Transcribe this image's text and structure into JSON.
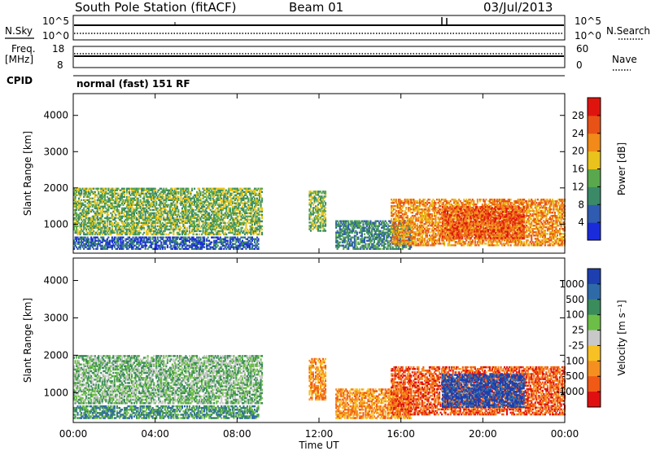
{
  "header": {
    "station": "South Pole Station (fitACF)",
    "beam": "Beam 01",
    "date": "03/Jul/2013"
  },
  "top_panels": {
    "nsky_label": "N.Sky",
    "nsearch_label": "N.Search",
    "noise_ticks": [
      "10^5",
      "10^0"
    ],
    "freq_label": "Freq.",
    "freq_unit": "[MHz]",
    "freq_ticks": [
      "18",
      "8"
    ],
    "nave_label": "Nave",
    "nave_ticks": [
      "60",
      "0"
    ],
    "cpid_label": "CPID",
    "cpid_value": "normal (fast) 151 RF"
  },
  "chart_data": [
    {
      "type": "heatmap",
      "xlabel": "Time UT",
      "ylabel": "Slant Range [km]",
      "x_ticks": [
        "00:00",
        "04:00",
        "08:00",
        "12:00",
        "16:00",
        "20:00",
        "00:00"
      ],
      "y_ticks": [
        1000,
        2000,
        3000,
        4000
      ],
      "ylim": [
        200,
        4600
      ],
      "xlim_hours": [
        0,
        24
      ],
      "colorbar": {
        "label": "Power [dB]",
        "ticks": [
          "4",
          "8",
          "12",
          "16",
          "20",
          "24",
          "28"
        ],
        "colors": [
          "#1a2bdc",
          "#2f5bb0",
          "#3a8a68",
          "#5aa84e",
          "#e9c31c",
          "#f18a18",
          "#e85216",
          "#e0140e"
        ]
      },
      "regions": [
        {
          "t0": 0.0,
          "t1": 9.2,
          "r0": 700,
          "r1": 2000,
          "level": 3
        },
        {
          "t0": 0.0,
          "t1": 9.0,
          "r0": 300,
          "r1": 650,
          "level": 1
        },
        {
          "t0": 11.5,
          "t1": 12.3,
          "r0": 800,
          "r1": 1900,
          "level": 3
        },
        {
          "t0": 12.8,
          "t1": 16.5,
          "r0": 300,
          "r1": 1100,
          "level": 2
        },
        {
          "t0": 15.5,
          "t1": 24.0,
          "r0": 400,
          "r1": 1700,
          "level": 5
        },
        {
          "t0": 18.0,
          "t1": 22.0,
          "r0": 600,
          "r1": 1500,
          "level": 6
        }
      ]
    },
    {
      "type": "heatmap",
      "xlabel": "Time UT",
      "ylabel": "Slant Range [km]",
      "x_ticks": [
        "00:00",
        "04:00",
        "08:00",
        "12:00",
        "16:00",
        "20:00",
        "00:00"
      ],
      "y_ticks": [
        1000,
        2000,
        3000,
        4000
      ],
      "ylim": [
        200,
        4600
      ],
      "xlim_hours": [
        0,
        24
      ],
      "colorbar": {
        "label": "Velocity [m s⁻¹]",
        "ticks": [
          "1000",
          "500",
          "100",
          "25",
          "-25",
          "-100",
          "-500",
          "-1000"
        ],
        "colors": [
          "#1d3fb0",
          "#2f6aa8",
          "#3a8c5c",
          "#6cbe46",
          "#c8c8c8",
          "#f7c023",
          "#f59020",
          "#f05a16",
          "#e01010"
        ]
      },
      "regions": [
        {
          "t0": 0.0,
          "t1": 9.2,
          "r0": 700,
          "r1": 2000,
          "level": 3
        },
        {
          "t0": 0.0,
          "t1": 9.0,
          "r0": 300,
          "r1": 650,
          "level": 2
        },
        {
          "t0": 11.5,
          "t1": 12.3,
          "r0": 800,
          "r1": 1900,
          "level": 6
        },
        {
          "t0": 12.8,
          "t1": 16.5,
          "r0": 300,
          "r1": 1100,
          "level": 6
        },
        {
          "t0": 15.5,
          "t1": 24.0,
          "r0": 400,
          "r1": 1700,
          "level": 7
        },
        {
          "t0": 18.0,
          "t1": 22.0,
          "r0": 600,
          "r1": 1500,
          "level": 0
        }
      ]
    }
  ]
}
